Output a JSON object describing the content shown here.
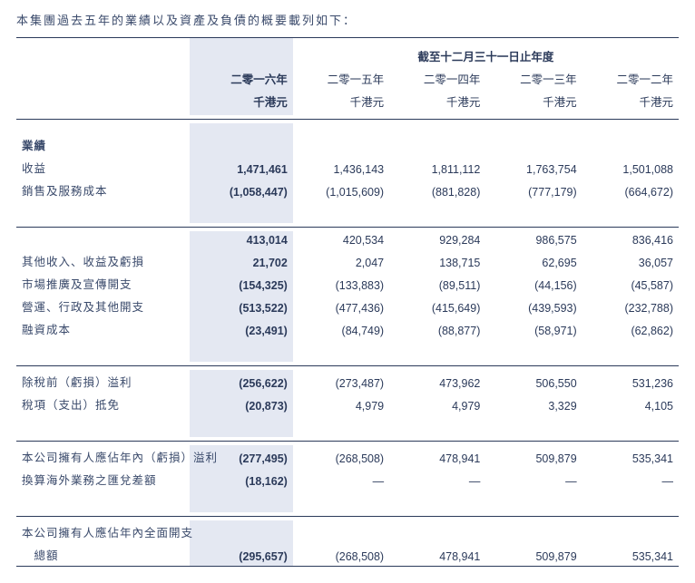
{
  "intro": "本集團過去五年的業績以及資產及負債的概要載列如下：",
  "table": {
    "super_title": "截至十二月三十一日止年度",
    "years": [
      "二零一六年",
      "二零一五年",
      "二零一四年",
      "二零一三年",
      "二零一二年"
    ],
    "units": [
      "千港元",
      "千港元",
      "千港元",
      "千港元",
      "千港元"
    ],
    "highlight_col": 0,
    "sections": [
      [
        {
          "label": "業績",
          "bold": true,
          "values": [
            "",
            "",
            "",
            "",
            ""
          ]
        },
        {
          "label": "收益",
          "values": [
            "1,471,461",
            "1,436,143",
            "1,811,112",
            "1,763,754",
            "1,501,088"
          ]
        },
        {
          "label": "銷售及服務成本",
          "values": [
            "(1,058,447)",
            "(1,015,609)",
            "(881,828)",
            "(777,179)",
            "(664,672)"
          ]
        }
      ],
      [
        {
          "label": "",
          "values": [
            "413,014",
            "420,534",
            "929,284",
            "986,575",
            "836,416"
          ]
        },
        {
          "label": "其他收入、收益及虧損",
          "values": [
            "21,702",
            "2,047",
            "138,715",
            "62,695",
            "36,057"
          ]
        },
        {
          "label": "市場推廣及宣傳開支",
          "values": [
            "(154,325)",
            "(133,883)",
            "(89,511)",
            "(44,156)",
            "(45,587)"
          ]
        },
        {
          "label": "營運、行政及其他開支",
          "values": [
            "(513,522)",
            "(477,436)",
            "(415,649)",
            "(439,593)",
            "(232,788)"
          ]
        },
        {
          "label": "融資成本",
          "values": [
            "(23,491)",
            "(84,749)",
            "(88,877)",
            "(58,971)",
            "(62,862)"
          ]
        }
      ],
      [
        {
          "label": "除稅前（虧損）溢利",
          "values": [
            "(256,622)",
            "(273,487)",
            "473,962",
            "506,550",
            "531,236"
          ]
        },
        {
          "label": "稅項（支出）抵免",
          "values": [
            "(20,873)",
            "4,979",
            "4,979",
            "3,329",
            "4,105"
          ]
        }
      ],
      [
        {
          "label": "本公司擁有人應佔年內（虧損）溢利",
          "values": [
            "(277,495)",
            "(268,508)",
            "478,941",
            "509,879",
            "535,341"
          ]
        },
        {
          "label": "換算海外業務之匯兌差額",
          "values": [
            "(18,162)",
            "—",
            "—",
            "—",
            "—"
          ]
        }
      ],
      [
        {
          "label": "本公司擁有人應佔年內全面開支",
          "values": [
            "",
            "",
            "",
            "",
            ""
          ]
        },
        {
          "label": "　總額",
          "values": [
            "(295,657)",
            "(268,508)",
            "478,941",
            "509,879",
            "535,341"
          ]
        }
      ]
    ]
  },
  "style": {
    "highlight_bg": "#e4e8f2",
    "text_color": "#2b3a5a",
    "border_color": "#2b3a5a",
    "font_size_body": 12.5,
    "font_size_intro": 13
  }
}
